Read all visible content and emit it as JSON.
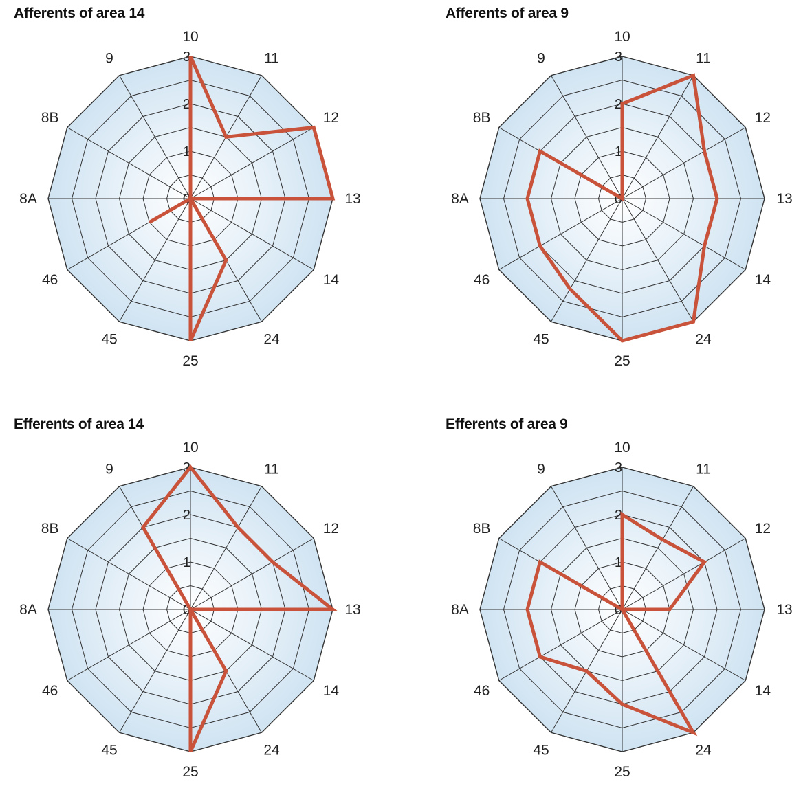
{
  "chart_data": [
    {
      "type": "radar",
      "title": "Afferents of area 14",
      "categories": [
        "10",
        "11",
        "12",
        "13",
        "14",
        "24",
        "25",
        "45",
        "46",
        "8A",
        "8B",
        "9"
      ],
      "radial_ticks": [
        "0",
        "1",
        "2",
        "3"
      ],
      "rlim": [
        0,
        3
      ],
      "values": [
        3,
        1.5,
        3,
        3,
        0,
        1.5,
        3,
        0,
        1,
        0,
        0,
        0
      ],
      "line_color": "#c8533a"
    },
    {
      "type": "radar",
      "title": "Afferents of area 9",
      "categories": [
        "10",
        "11",
        "12",
        "13",
        "14",
        "24",
        "25",
        "45",
        "46",
        "8A",
        "8B",
        "9"
      ],
      "radial_ticks": [
        "0",
        "1",
        "2",
        "3"
      ],
      "rlim": [
        0,
        3
      ],
      "values": [
        2,
        3,
        2,
        2,
        2,
        3,
        3,
        2.2,
        2,
        2,
        2,
        0
      ],
      "line_color": "#c8533a"
    },
    {
      "type": "radar",
      "title": "Efferents of area 14",
      "categories": [
        "10",
        "11",
        "12",
        "13",
        "14",
        "24",
        "25",
        "45",
        "46",
        "8A",
        "8B",
        "9"
      ],
      "radial_ticks": [
        "0",
        "1",
        "2",
        "3"
      ],
      "rlim": [
        0,
        3
      ],
      "values": [
        3,
        2,
        2,
        3,
        0,
        1.5,
        3,
        0,
        0,
        0,
        0,
        2
      ],
      "line_color": "#c8533a"
    },
    {
      "type": "radar",
      "title": "Efferents of area 9",
      "categories": [
        "10",
        "11",
        "12",
        "13",
        "14",
        "24",
        "25",
        "45",
        "46",
        "8A",
        "8B",
        "9"
      ],
      "radial_ticks": [
        "0",
        "1",
        "2",
        "3"
      ],
      "rlim": [
        0,
        3
      ],
      "values": [
        2,
        1.7,
        2,
        1,
        0,
        3,
        2,
        1.5,
        2,
        2,
        2,
        0
      ],
      "line_color": "#c8533a"
    }
  ]
}
